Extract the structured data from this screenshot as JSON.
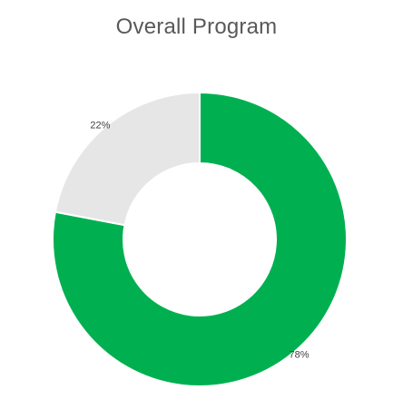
{
  "chart_data": {
    "type": "pie",
    "variant": "donut",
    "title": "Overall Program",
    "slices": [
      {
        "value": 78,
        "label": "78%",
        "color": "#00b050"
      },
      {
        "value": 22,
        "label": "22%",
        "color": "#e6e6e6"
      }
    ],
    "start_angle_deg": 0,
    "direction": "clockwise",
    "legend": "none"
  }
}
